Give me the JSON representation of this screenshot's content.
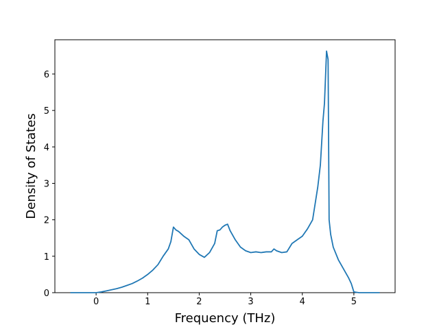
{
  "chart_data": {
    "type": "line",
    "xlabel": "Frequency (THz)",
    "ylabel": "Density of States",
    "x": [
      -0.5,
      -0.2,
      0,
      0.1,
      0.2,
      0.3,
      0.4,
      0.5,
      0.6,
      0.7,
      0.8,
      0.9,
      1.0,
      1.1,
      1.2,
      1.3,
      1.4,
      1.45,
      1.5,
      1.55,
      1.6,
      1.7,
      1.8,
      1.9,
      2.0,
      2.1,
      2.2,
      2.3,
      2.35,
      2.4,
      2.45,
      2.5,
      2.55,
      2.6,
      2.7,
      2.8,
      2.9,
      3.0,
      3.1,
      3.2,
      3.3,
      3.4,
      3.45,
      3.5,
      3.6,
      3.7,
      3.8,
      3.9,
      4.0,
      4.1,
      4.2,
      4.25,
      4.3,
      4.35,
      4.4,
      4.43,
      4.47,
      4.5,
      4.52,
      4.55,
      4.6,
      4.7,
      4.8,
      4.9,
      4.95,
      5.0,
      5.1,
      5.5
    ],
    "y": [
      0,
      0,
      0,
      0.02,
      0.05,
      0.08,
      0.11,
      0.15,
      0.2,
      0.25,
      0.32,
      0.4,
      0.5,
      0.62,
      0.77,
      1.0,
      1.2,
      1.4,
      1.8,
      1.72,
      1.68,
      1.55,
      1.45,
      1.2,
      1.05,
      0.97,
      1.1,
      1.35,
      1.7,
      1.72,
      1.8,
      1.85,
      1.88,
      1.7,
      1.45,
      1.25,
      1.15,
      1.1,
      1.12,
      1.1,
      1.12,
      1.12,
      1.2,
      1.15,
      1.1,
      1.12,
      1.35,
      1.45,
      1.55,
      1.75,
      2.0,
      2.45,
      2.9,
      3.5,
      4.7,
      5.2,
      6.63,
      6.4,
      2.0,
      1.6,
      1.25,
      0.9,
      0.65,
      0.4,
      0.25,
      0.02,
      0,
      0
    ],
    "color": "#1f77b4",
    "xlim": [
      -0.8,
      5.8
    ],
    "xticks": [
      0,
      1,
      2,
      3,
      4,
      5
    ],
    "ylim": [
      0,
      6.94
    ],
    "yticks": [
      0,
      1,
      2,
      3,
      4,
      5,
      6
    ]
  }
}
